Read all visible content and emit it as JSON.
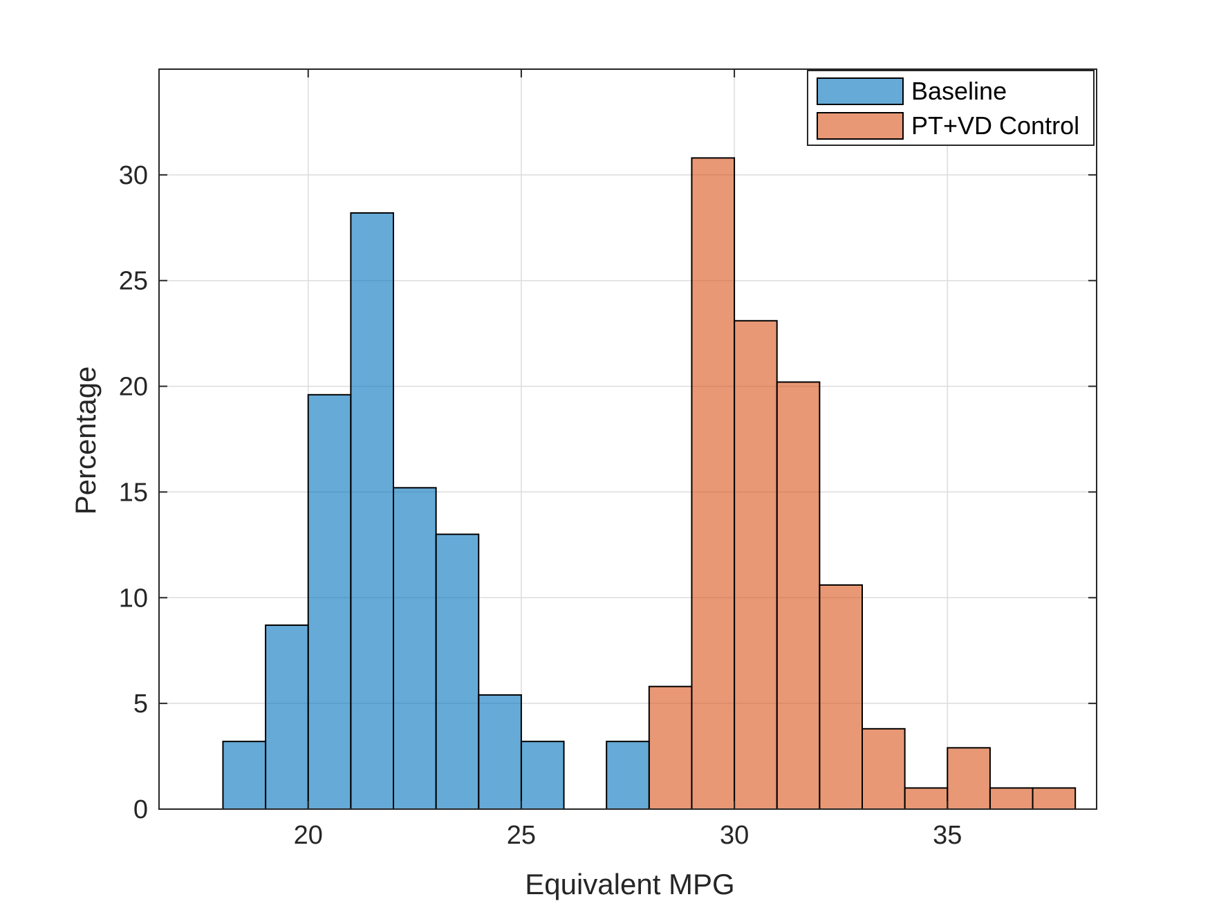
{
  "chart_data": {
    "type": "bar",
    "subtype": "histogram",
    "title": "",
    "xlabel": "Equivalent MPG",
    "ylabel": "Percentage",
    "xlim": [
      16.5,
      38.5
    ],
    "ylim": [
      0,
      35
    ],
    "xticks": [
      "20",
      "25",
      "30",
      "35"
    ],
    "yticks": [
      "0",
      "5",
      "10",
      "15",
      "20",
      "25",
      "30"
    ],
    "grid": true,
    "legend_position": "top-right",
    "series": [
      {
        "name": "Baseline",
        "color": "#0072BD",
        "bins": [
          {
            "x0": 18,
            "x1": 19,
            "value": 3.2
          },
          {
            "x0": 19,
            "x1": 20,
            "value": 8.7
          },
          {
            "x0": 20,
            "x1": 21,
            "value": 19.6
          },
          {
            "x0": 21,
            "x1": 22,
            "value": 28.2
          },
          {
            "x0": 22,
            "x1": 23,
            "value": 15.2
          },
          {
            "x0": 23,
            "x1": 24,
            "value": 13.0
          },
          {
            "x0": 24,
            "x1": 25,
            "value": 5.4
          },
          {
            "x0": 25,
            "x1": 26,
            "value": 3.2
          },
          {
            "x0": 26,
            "x1": 27,
            "value": 0
          },
          {
            "x0": 27,
            "x1": 28,
            "value": 3.2
          }
        ]
      },
      {
        "name": "PT+VD Control",
        "color": "#D95319",
        "bins": [
          {
            "x0": 28,
            "x1": 29,
            "value": 5.8
          },
          {
            "x0": 29,
            "x1": 30,
            "value": 30.8
          },
          {
            "x0": 30,
            "x1": 31,
            "value": 23.1
          },
          {
            "x0": 31,
            "x1": 32,
            "value": 20.2
          },
          {
            "x0": 32,
            "x1": 33,
            "value": 10.6
          },
          {
            "x0": 33,
            "x1": 34,
            "value": 3.8
          },
          {
            "x0": 34,
            "x1": 35,
            "value": 1.0
          },
          {
            "x0": 35,
            "x1": 36,
            "value": 2.9
          },
          {
            "x0": 36,
            "x1": 37,
            "value": 1.0
          },
          {
            "x0": 37,
            "x1": 38,
            "value": 1.0
          }
        ]
      }
    ]
  }
}
